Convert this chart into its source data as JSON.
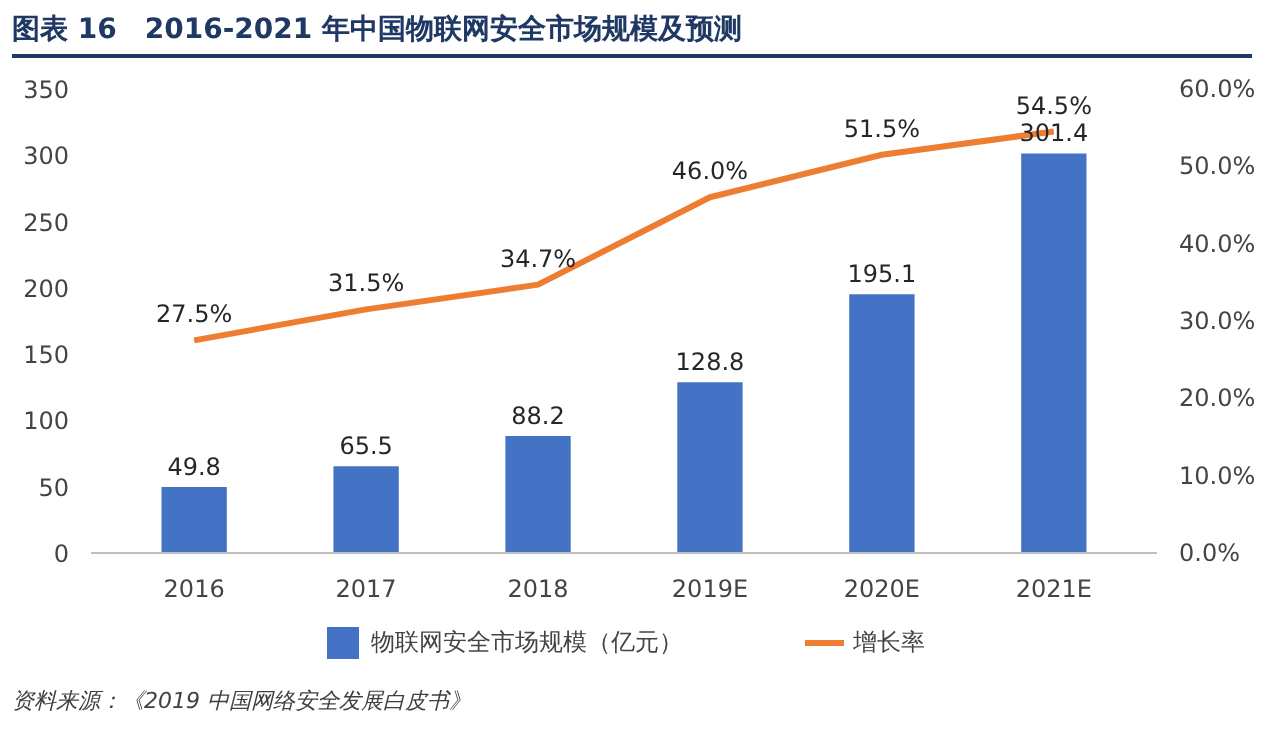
{
  "chart_data": {
    "type": "bar",
    "title": "图表 16　2016-2021 年中国物联网安全市场规模及预测",
    "categories": [
      "2016",
      "2017",
      "2018",
      "2019E",
      "2020E",
      "2021E"
    ],
    "series": [
      {
        "name": "物联网安全市场规模（亿元）",
        "color": "#4472c4",
        "values": [
          49.8,
          65.5,
          88.2,
          128.8,
          195.1,
          301.4
        ],
        "value_labels": [
          "49.8",
          "65.5",
          "88.2",
          "128.8",
          "195.1",
          "301.4"
        ]
      },
      {
        "name": "增长率",
        "type": "line",
        "axis": "y2",
        "color": "#ed7d31",
        "values": [
          27.5,
          31.5,
          34.7,
          46.0,
          51.5,
          54.5
        ],
        "value_labels": [
          "27.5%",
          "31.5%",
          "34.7%",
          "46.0%",
          "51.5%",
          "54.5%"
        ]
      }
    ],
    "ylim": [
      0,
      350
    ],
    "yticks": [
      0,
      50,
      100,
      150,
      200,
      250,
      300,
      350
    ],
    "y2lim": [
      0,
      60
    ],
    "y2ticks": [
      {
        "value": 0,
        "label": "0.0%"
      },
      {
        "value": 10,
        "label": "10.0%"
      },
      {
        "value": 20,
        "label": "20.0%"
      },
      {
        "value": 30,
        "label": "30.0%"
      },
      {
        "value": 40,
        "label": "40.0%"
      },
      {
        "value": 50,
        "label": "50.0%"
      },
      {
        "value": 60,
        "label": "60.0%"
      }
    ],
    "grid": false,
    "legend": "bottom",
    "annotations": [
      "资料来源：《2019 中国网络安全发展白皮书》"
    ]
  }
}
